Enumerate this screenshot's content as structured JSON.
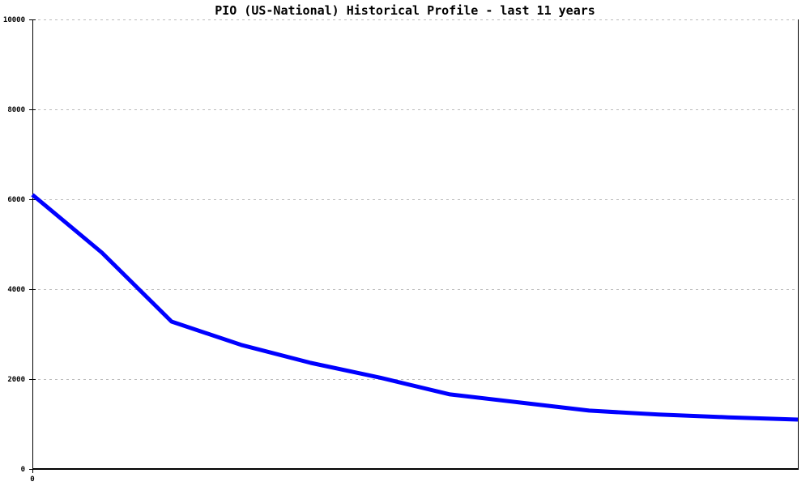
{
  "header": {
    "title": "PIO (US-National) Historical Profile - last 11 years"
  },
  "chart_data": {
    "type": "line",
    "title": "PIO (US-National) Historical Profile - last 11 years",
    "series": [
      {
        "name": "PIO (US-National)",
        "x": [
          0,
          1,
          2,
          3,
          4,
          5,
          6,
          7,
          8,
          9,
          10,
          11
        ],
        "values": [
          6100,
          4810,
          3280,
          2760,
          2360,
          2030,
          1660,
          1480,
          1300,
          1210,
          1150,
          1100
        ]
      }
    ],
    "xlabel": "",
    "ylabel": "",
    "xlim": [
      0,
      11
    ],
    "ylim": [
      0,
      10000
    ],
    "yticks": [
      0,
      2000,
      4000,
      6000,
      8000,
      10000
    ],
    "ytick_labels": [
      "0",
      "2000",
      "4000",
      "6000",
      "8000",
      "10000"
    ],
    "xtick_labels_visible": [
      "0"
    ],
    "x_origin_label": "0",
    "grid": "horizontal-dashed",
    "legend": "none",
    "colors": {
      "line": "#0000ff",
      "grid": "#bbbbbb",
      "axis": "#000000",
      "background": "#ffffff",
      "text": "#000000"
    }
  }
}
